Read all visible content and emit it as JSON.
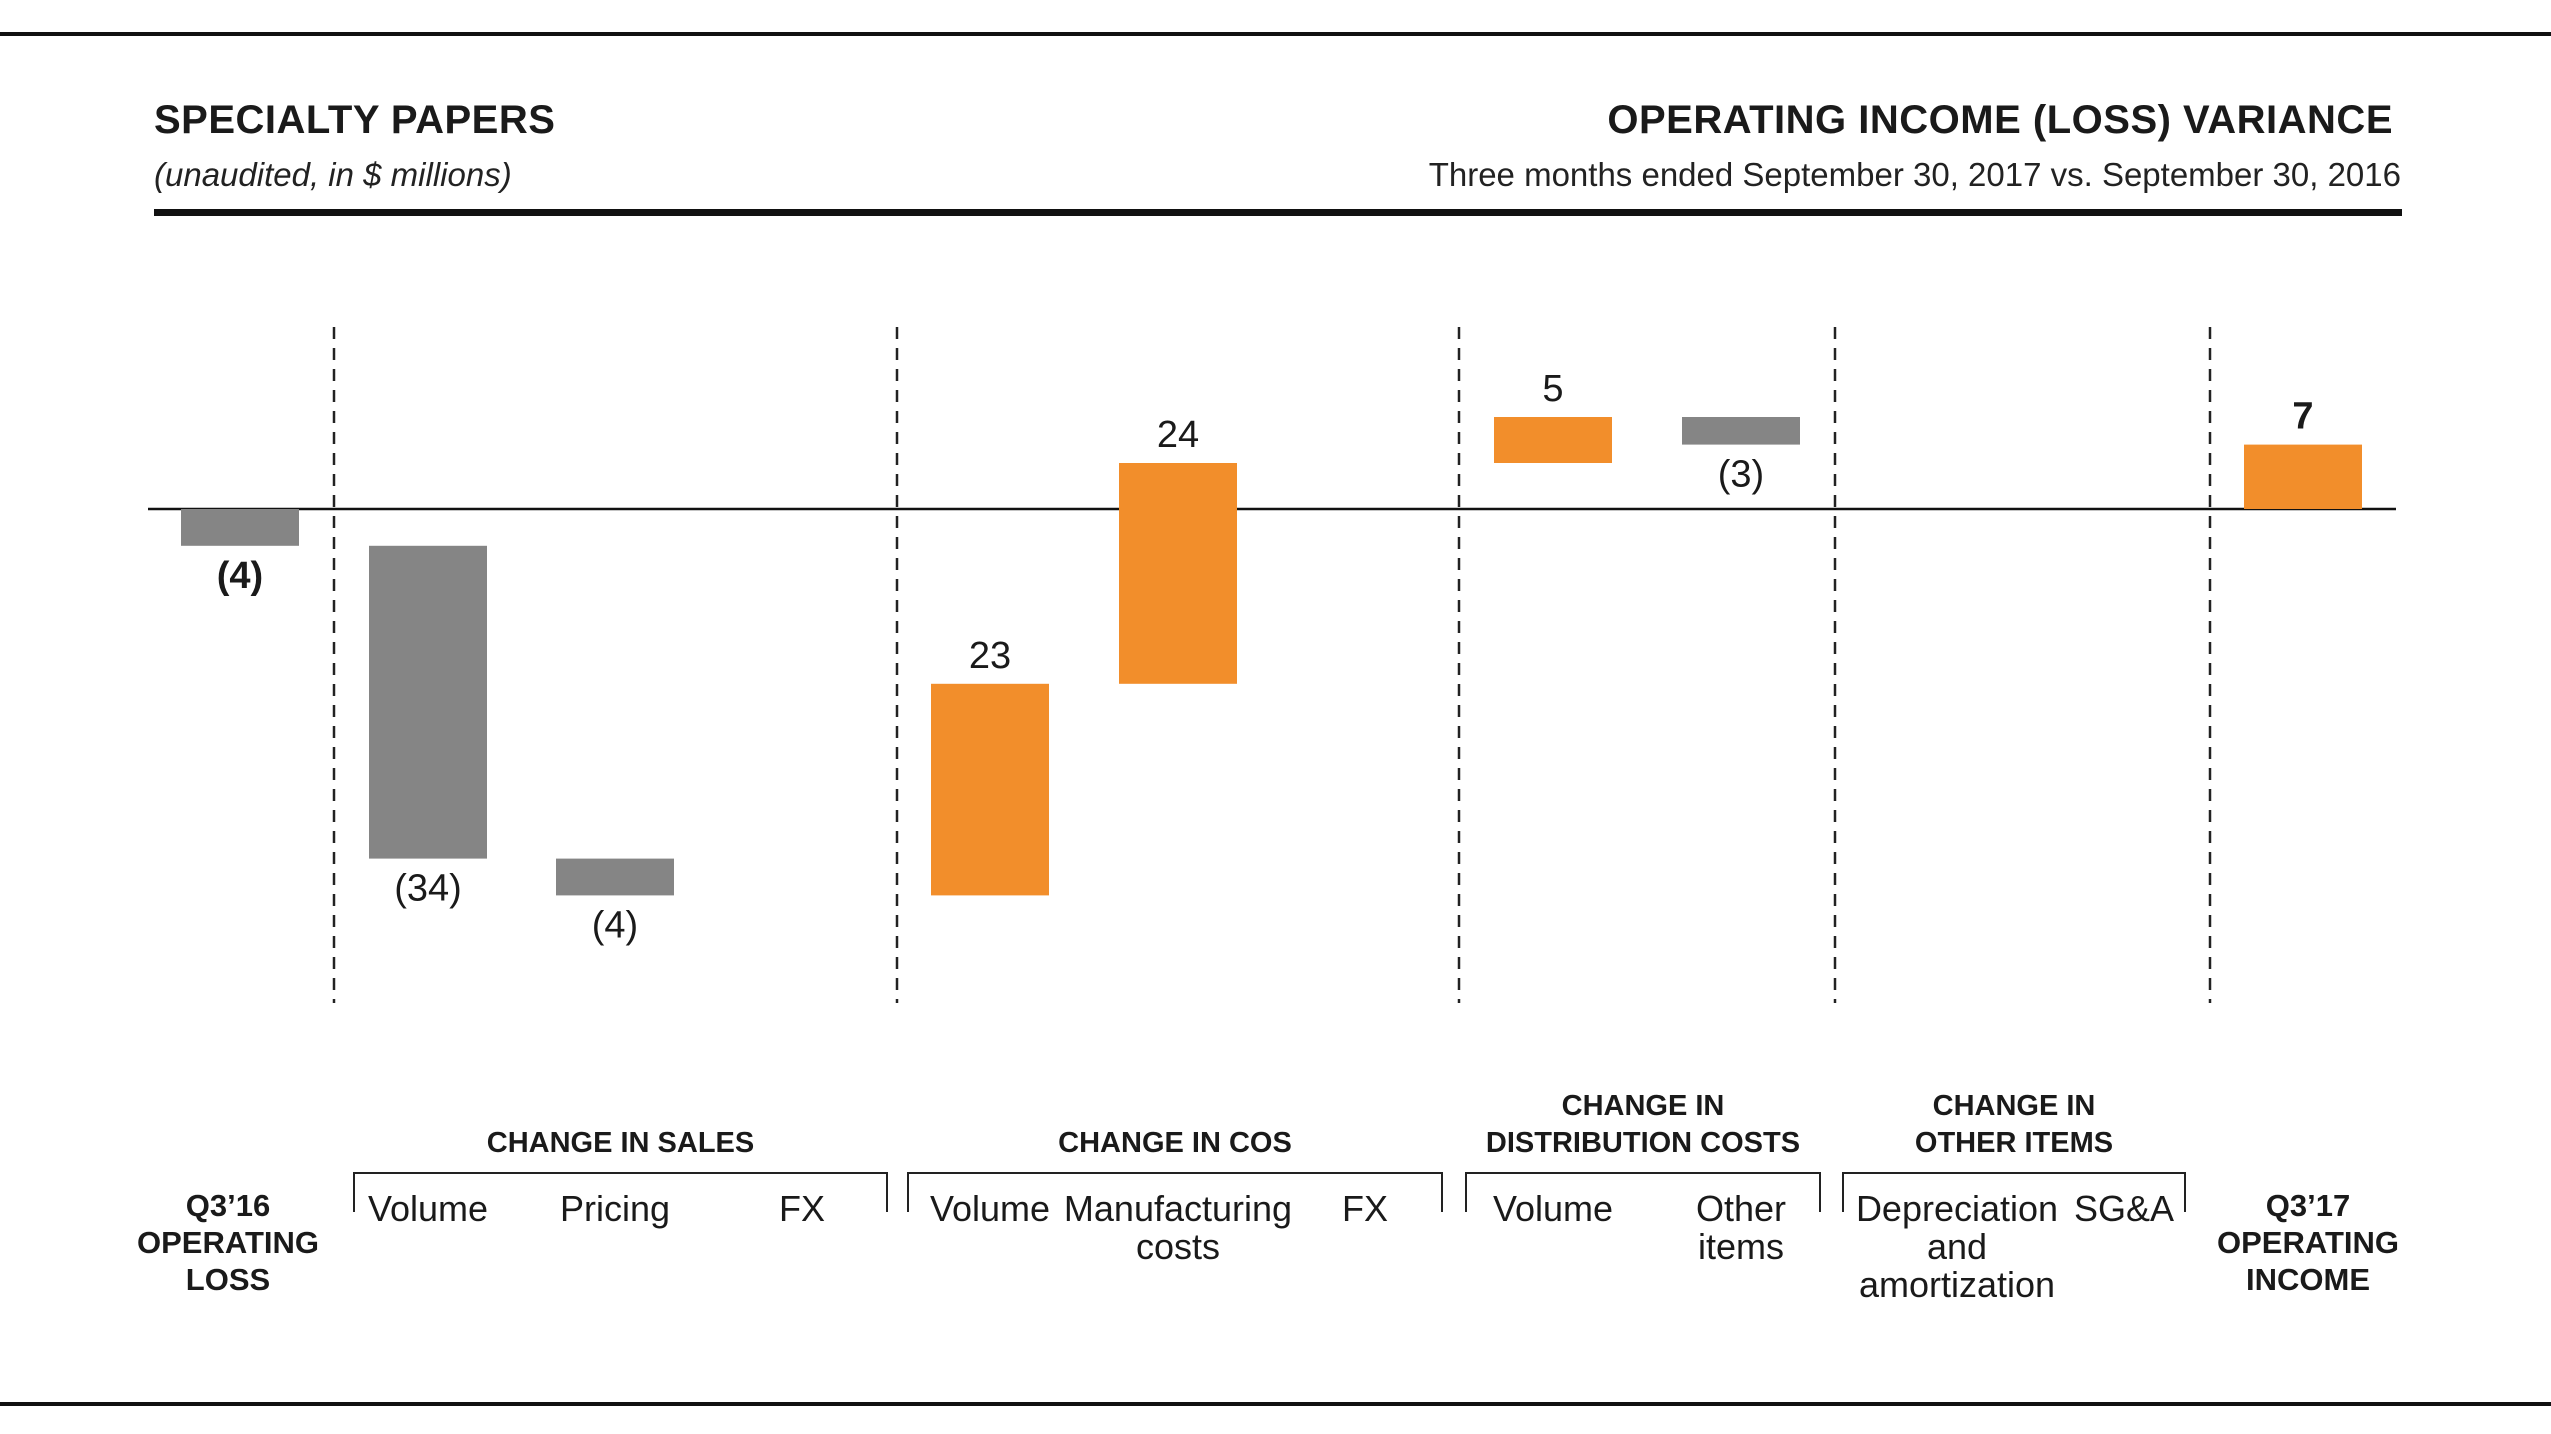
{
  "header": {
    "left_title": "SPECIALTY PAPERS",
    "left_subtitle": "(unaudited, in $ millions)",
    "right_title": "OPERATING INCOME (LOSS) VARIANCE",
    "right_subtitle": "Three months ended September 30, 2017 vs. September 30, 2016"
  },
  "colors": {
    "negative": "#858585",
    "positive": "#f28e2b",
    "axis": "#111111"
  },
  "chart_data": {
    "type": "bar",
    "subtype": "waterfall",
    "title": "OPERATING INCOME (LOSS) VARIANCE",
    "subtitle": "Three months ended September 30, 2017 vs. September 30, 2016",
    "ylim": [
      -38,
      10
    ],
    "grid": false,
    "steps": [
      {
        "label": "Q3'16 OPERATING LOSS",
        "value": -4,
        "label_text": "(4)",
        "kind": "total",
        "bold": true
      },
      {
        "label": "Volume",
        "value": -34,
        "label_text": "(34)",
        "kind": "delta"
      },
      {
        "label": "Pricing",
        "value": -4,
        "label_text": "(4)",
        "kind": "delta"
      },
      {
        "label": "FX",
        "value": 0,
        "label_text": "",
        "kind": "delta"
      },
      {
        "label": "Volume",
        "value": 23,
        "label_text": "23",
        "kind": "delta"
      },
      {
        "label": "Manufacturing costs",
        "value": 24,
        "label_text": "24",
        "kind": "delta"
      },
      {
        "label": "FX",
        "value": 0,
        "label_text": "",
        "kind": "delta"
      },
      {
        "label": "Volume",
        "value": 5,
        "label_text": "5",
        "kind": "delta"
      },
      {
        "label": "Other items",
        "value": -3,
        "label_text": "(3)",
        "kind": "delta"
      },
      {
        "label": "Depreciation and amortization",
        "value": 0,
        "label_text": "",
        "kind": "delta"
      },
      {
        "label": "SG&A",
        "value": 0,
        "label_text": "",
        "kind": "delta"
      },
      {
        "label": "Q3'17 OPERATING INCOME",
        "value": 7,
        "label_text": "7",
        "kind": "total",
        "bold": true
      }
    ],
    "groups": [
      {
        "title_lines": [
          "CHANGE IN SALES"
        ],
        "steps": [
          1,
          2,
          3
        ]
      },
      {
        "title_lines": [
          "CHANGE IN COS"
        ],
        "steps": [
          4,
          5,
          6
        ]
      },
      {
        "title_lines": [
          "CHANGE IN",
          "DISTRIBUTION COSTS"
        ],
        "steps": [
          7,
          8
        ]
      },
      {
        "title_lines": [
          "CHANGE IN",
          "OTHER ITEMS"
        ],
        "steps": [
          9,
          10
        ]
      }
    ],
    "category_labels": [
      {
        "step": 0,
        "lines": [
          "Q3’16",
          "OPERATING",
          "LOSS"
        ],
        "bold": true
      },
      {
        "step": 1,
        "lines": [
          "Volume"
        ]
      },
      {
        "step": 2,
        "lines": [
          "Pricing"
        ]
      },
      {
        "step": 3,
        "lines": [
          "FX"
        ]
      },
      {
        "step": 4,
        "lines": [
          "Volume"
        ]
      },
      {
        "step": 5,
        "lines": [
          "Manufacturing",
          "costs"
        ]
      },
      {
        "step": 6,
        "lines": [
          "FX"
        ]
      },
      {
        "step": 7,
        "lines": [
          "Volume"
        ]
      },
      {
        "step": 8,
        "lines": [
          "Other",
          "items"
        ]
      },
      {
        "step": 9,
        "lines": [
          "Depreciation",
          "and",
          "amortization"
        ]
      },
      {
        "step": 10,
        "lines": [
          "SG&A"
        ]
      },
      {
        "step": 11,
        "lines": [
          "Q3’17",
          "OPERATING",
          "INCOME"
        ],
        "bold": true
      }
    ]
  }
}
